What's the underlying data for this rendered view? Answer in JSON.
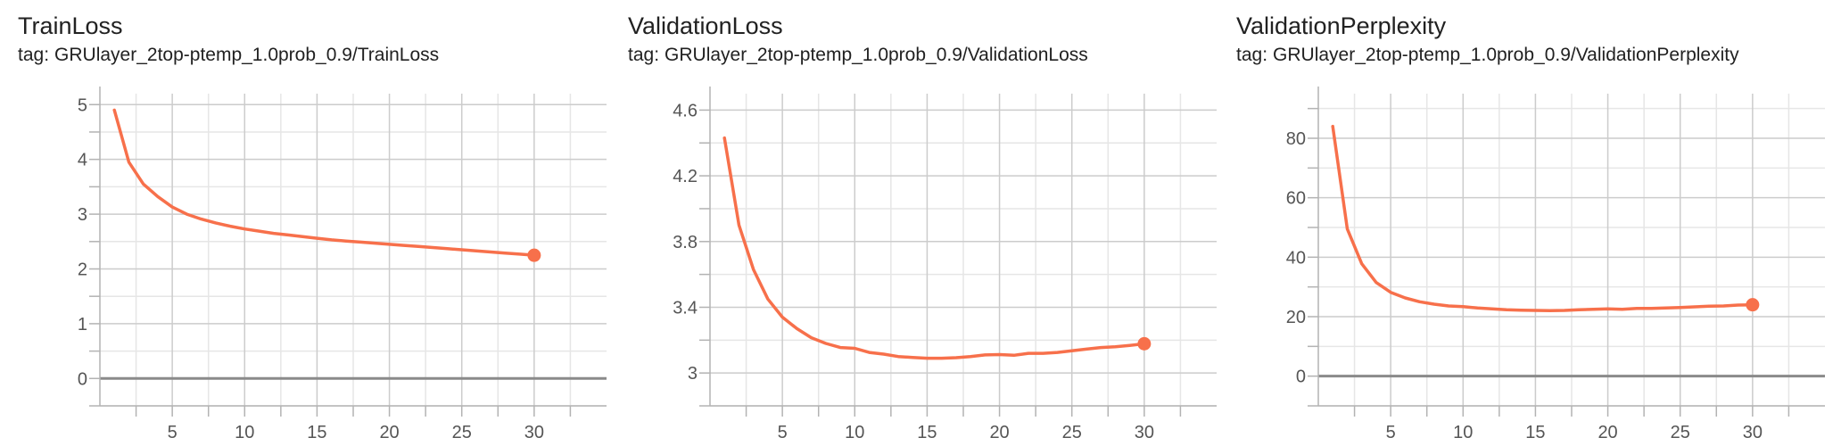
{
  "chart_data": [
    {
      "type": "line",
      "title": "TrainLoss",
      "tag_label": "tag:",
      "tag": "GRUlayer_2top-ptemp_1.0prob_0.9/TrainLoss",
      "x": [
        1,
        2,
        3,
        4,
        5,
        6,
        7,
        8,
        9,
        10,
        11,
        12,
        13,
        14,
        15,
        16,
        17,
        18,
        19,
        20,
        21,
        22,
        23,
        24,
        25,
        26,
        27,
        28,
        29,
        30
      ],
      "series": [
        {
          "values": [
            4.9,
            3.95,
            3.55,
            3.32,
            3.13,
            3.0,
            2.91,
            2.84,
            2.78,
            2.73,
            2.69,
            2.65,
            2.62,
            2.59,
            2.56,
            2.53,
            2.51,
            2.49,
            2.47,
            2.45,
            2.43,
            2.41,
            2.39,
            2.37,
            2.35,
            2.33,
            2.31,
            2.29,
            2.27,
            2.25
          ],
          "color": "#f7704b"
        }
      ],
      "xticks": [
        5,
        10,
        15,
        20,
        25,
        30
      ],
      "yticks": [
        0,
        1,
        2,
        3,
        4,
        5
      ],
      "ytick_labels": [
        "0",
        "1",
        "2",
        "3",
        "4",
        "5"
      ],
      "xlim": [
        0,
        35
      ],
      "ylim": [
        -0.5,
        5.2
      ],
      "grid": true,
      "zero_line": true
    },
    {
      "type": "line",
      "title": "ValidationLoss",
      "tag_label": "tag:",
      "tag": "GRUlayer_2top-ptemp_1.0prob_0.9/ValidationLoss",
      "x": [
        1,
        2,
        3,
        4,
        5,
        6,
        7,
        8,
        9,
        10,
        11,
        12,
        13,
        14,
        15,
        16,
        17,
        18,
        19,
        20,
        21,
        22,
        23,
        24,
        25,
        26,
        27,
        28,
        29,
        30
      ],
      "series": [
        {
          "values": [
            4.43,
            3.9,
            3.63,
            3.45,
            3.34,
            3.27,
            3.215,
            3.18,
            3.155,
            3.15,
            3.125,
            3.115,
            3.1,
            3.095,
            3.09,
            3.09,
            3.093,
            3.1,
            3.11,
            3.112,
            3.108,
            3.12,
            3.12,
            3.125,
            3.135,
            3.145,
            3.155,
            3.16,
            3.168,
            3.178
          ],
          "color": "#f7704b"
        }
      ],
      "xticks": [
        5,
        10,
        15,
        20,
        25,
        30
      ],
      "yticks": [
        3.0,
        3.4,
        3.8,
        4.2,
        4.6
      ],
      "ytick_labels": [
        "3",
        "3.4",
        "3.8",
        "4.2",
        "4.6"
      ],
      "xlim": [
        0,
        35
      ],
      "ylim": [
        2.8,
        4.7
      ],
      "grid": true,
      "zero_line": false
    },
    {
      "type": "line",
      "title": "ValidationPerplexity",
      "tag_label": "tag:",
      "tag": "GRUlayer_2top-ptemp_1.0prob_0.9/ValidationPerplexity",
      "x": [
        1,
        2,
        3,
        4,
        5,
        6,
        7,
        8,
        9,
        10,
        11,
        12,
        13,
        14,
        15,
        16,
        17,
        18,
        19,
        20,
        21,
        22,
        23,
        24,
        25,
        26,
        27,
        28,
        29,
        30
      ],
      "series": [
        {
          "values": [
            84,
            49.5,
            37.8,
            31.5,
            28.2,
            26.3,
            25.0,
            24.2,
            23.6,
            23.4,
            22.9,
            22.6,
            22.3,
            22.2,
            22.1,
            22.0,
            22.1,
            22.3,
            22.5,
            22.6,
            22.5,
            22.8,
            22.8,
            22.9,
            23.1,
            23.3,
            23.5,
            23.6,
            23.9,
            24.0
          ],
          "color": "#f7704b"
        }
      ],
      "xticks": [
        5,
        10,
        15,
        20,
        25,
        30
      ],
      "yticks": [
        0,
        20,
        40,
        60,
        80
      ],
      "ytick_labels": [
        "0",
        "20",
        "40",
        "60",
        "80"
      ],
      "xlim": [
        0,
        35
      ],
      "ylim": [
        -10,
        95
      ],
      "grid": true,
      "zero_line": true
    }
  ]
}
